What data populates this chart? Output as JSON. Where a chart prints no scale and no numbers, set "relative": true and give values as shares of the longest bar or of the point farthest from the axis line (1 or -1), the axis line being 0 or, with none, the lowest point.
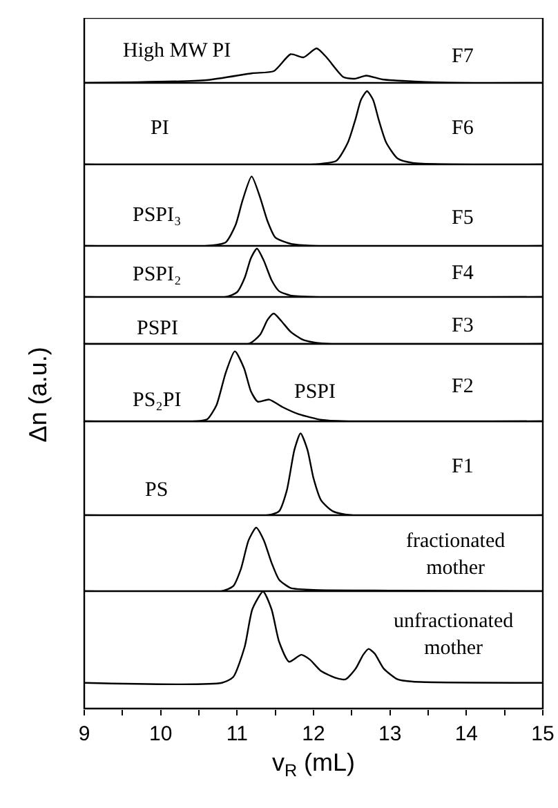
{
  "chart_data": [
    {
      "type": "line",
      "relative": true,
      "tick_labels": false,
      "xlim": [
        9,
        15
      ],
      "x": [
        9,
        10.6,
        11.2,
        11.48,
        11.7,
        11.87,
        12.04,
        12.17,
        12.39,
        12.54,
        12.69,
        12.9,
        13.32,
        13.92,
        15
      ],
      "series": [
        {
          "color": "#000000",
          "values": [
            0,
            0.08,
            0.28,
            0.34,
            0.83,
            0.74,
            1,
            0.74,
            0.17,
            0.12,
            0.21,
            0.1,
            0.04,
            0,
            0
          ]
        }
      ],
      "annotations": [
        "High MW PI",
        "F7"
      ]
    },
    {
      "type": "line",
      "relative": true,
      "tick_labels": false,
      "xlim": [
        9,
        15
      ],
      "x": [
        9,
        12,
        12.3,
        12.45,
        12.55,
        12.62,
        12.7,
        12.78,
        12.85,
        12.95,
        13.1,
        13.3,
        15
      ],
      "series": [
        {
          "color": "#000000",
          "values": [
            0,
            0,
            0.05,
            0.3,
            0.62,
            0.88,
            1,
            0.88,
            0.62,
            0.3,
            0.08,
            0.02,
            0
          ]
        }
      ],
      "annotations": [
        "PI",
        "F6"
      ]
    },
    {
      "type": "line",
      "relative": true,
      "tick_labels": false,
      "xlim": [
        9,
        15
      ],
      "x": [
        9,
        10.6,
        10.85,
        10.98,
        11.07,
        11.19,
        11.3,
        11.4,
        11.5,
        11.7,
        12,
        15
      ],
      "series": [
        {
          "color": "#000000",
          "values": [
            0,
            0,
            0.05,
            0.3,
            0.65,
            1,
            0.7,
            0.35,
            0.12,
            0.03,
            0,
            0
          ]
        }
      ],
      "annotations": [
        "PSPI₃",
        "F5"
      ]
    },
    {
      "type": "line",
      "relative": true,
      "tick_labels": false,
      "xlim": [
        9,
        15
      ],
      "x": [
        9,
        10.85,
        11,
        11.1,
        11.18,
        11.26,
        11.35,
        11.45,
        11.55,
        11.7,
        12,
        15
      ],
      "series": [
        {
          "color": "#000000",
          "values": [
            0,
            0,
            0.1,
            0.4,
            0.8,
            1,
            0.75,
            0.35,
            0.12,
            0.03,
            0,
            0
          ]
        }
      ],
      "annotations": [
        "PSPI₂",
        "F4"
      ]
    },
    {
      "type": "line",
      "relative": true,
      "tick_labels": false,
      "xlim": [
        9,
        15
      ],
      "x": [
        9,
        11.15,
        11.3,
        11.4,
        11.48,
        11.58,
        11.7,
        11.85,
        12,
        12.2,
        15
      ],
      "series": [
        {
          "color": "#000000",
          "values": [
            0,
            0,
            0.3,
            0.8,
            1,
            0.75,
            0.4,
            0.15,
            0.05,
            0,
            0
          ]
        }
      ],
      "annotations": [
        "PSPI",
        "F3"
      ]
    },
    {
      "type": "line",
      "relative": true,
      "tick_labels": false,
      "xlim": [
        9,
        15
      ],
      "ylabel": "Δn (a.u.)",
      "x": [
        9,
        10.45,
        10.61,
        10.73,
        10.85,
        10.97,
        11.09,
        11.18,
        11.27,
        11.42,
        11.6,
        11.81,
        12.11,
        12.4,
        15
      ],
      "series": [
        {
          "color": "#000000",
          "values": [
            0,
            0,
            0.03,
            0.23,
            0.69,
            1,
            0.76,
            0.43,
            0.28,
            0.31,
            0.2,
            0.1,
            0.02,
            0,
            0
          ]
        }
      ],
      "annotations": [
        "PS₂PI",
        "PSPI",
        "F2"
      ]
    },
    {
      "type": "line",
      "relative": true,
      "tick_labels": false,
      "xlim": [
        9,
        15
      ],
      "x": [
        9,
        11.4,
        11.55,
        11.65,
        11.75,
        11.83,
        11.92,
        12,
        12.1,
        12.25,
        12.5,
        15
      ],
      "series": [
        {
          "color": "#000000",
          "values": [
            0,
            0,
            0.05,
            0.3,
            0.8,
            1,
            0.8,
            0.45,
            0.18,
            0.05,
            0,
            0
          ]
        }
      ],
      "annotations": [
        "PS",
        "F1"
      ]
    },
    {
      "type": "line",
      "relative": true,
      "tick_labels": false,
      "xlim": [
        9,
        15
      ],
      "x": [
        9,
        10.8,
        10.95,
        11.05,
        11.15,
        11.25,
        11.35,
        11.45,
        11.55,
        11.7,
        12,
        13,
        15
      ],
      "series": [
        {
          "color": "#000000",
          "values": [
            0,
            0,
            0.08,
            0.35,
            0.8,
            1,
            0.8,
            0.45,
            0.18,
            0.05,
            0.02,
            0.01,
            0
          ]
        }
      ],
      "annotations": [
        "fractionated\nmother"
      ]
    },
    {
      "type": "line",
      "relative": true,
      "tick_labels": "x",
      "xlim": [
        9,
        15
      ],
      "xlabel": "v$_{R}$ (mL)",
      "xticks": [
        9,
        {
          "value": 9.5,
          "label": null
        },
        10,
        {
          "value": 10.5,
          "label": null
        },
        11,
        {
          "value": 11.5,
          "label": null
        },
        12,
        {
          "value": 12.5,
          "label": null
        },
        13,
        {
          "value": 13.5,
          "label": null
        },
        14,
        {
          "value": 14.5,
          "label": null
        },
        15
      ],
      "x": [
        9,
        10.8,
        10.95,
        11.1,
        11.2,
        11.34,
        11.45,
        11.55,
        11.68,
        11.84,
        11.95,
        12.1,
        12.3,
        12.42,
        12.55,
        12.65,
        12.72,
        12.8,
        12.92,
        13.1,
        13.3,
        15
      ],
      "series": [
        {
          "color": "#000000",
          "values": [
            0.22,
            0.22,
            0.27,
            0.53,
            0.85,
            1,
            0.85,
            0.57,
            0.4,
            0.46,
            0.42,
            0.32,
            0.26,
            0.25,
            0.34,
            0.46,
            0.51,
            0.47,
            0.34,
            0.25,
            0.23,
            0.22
          ]
        }
      ],
      "annotations": [
        "unfractionated\nmother"
      ]
    }
  ]
}
